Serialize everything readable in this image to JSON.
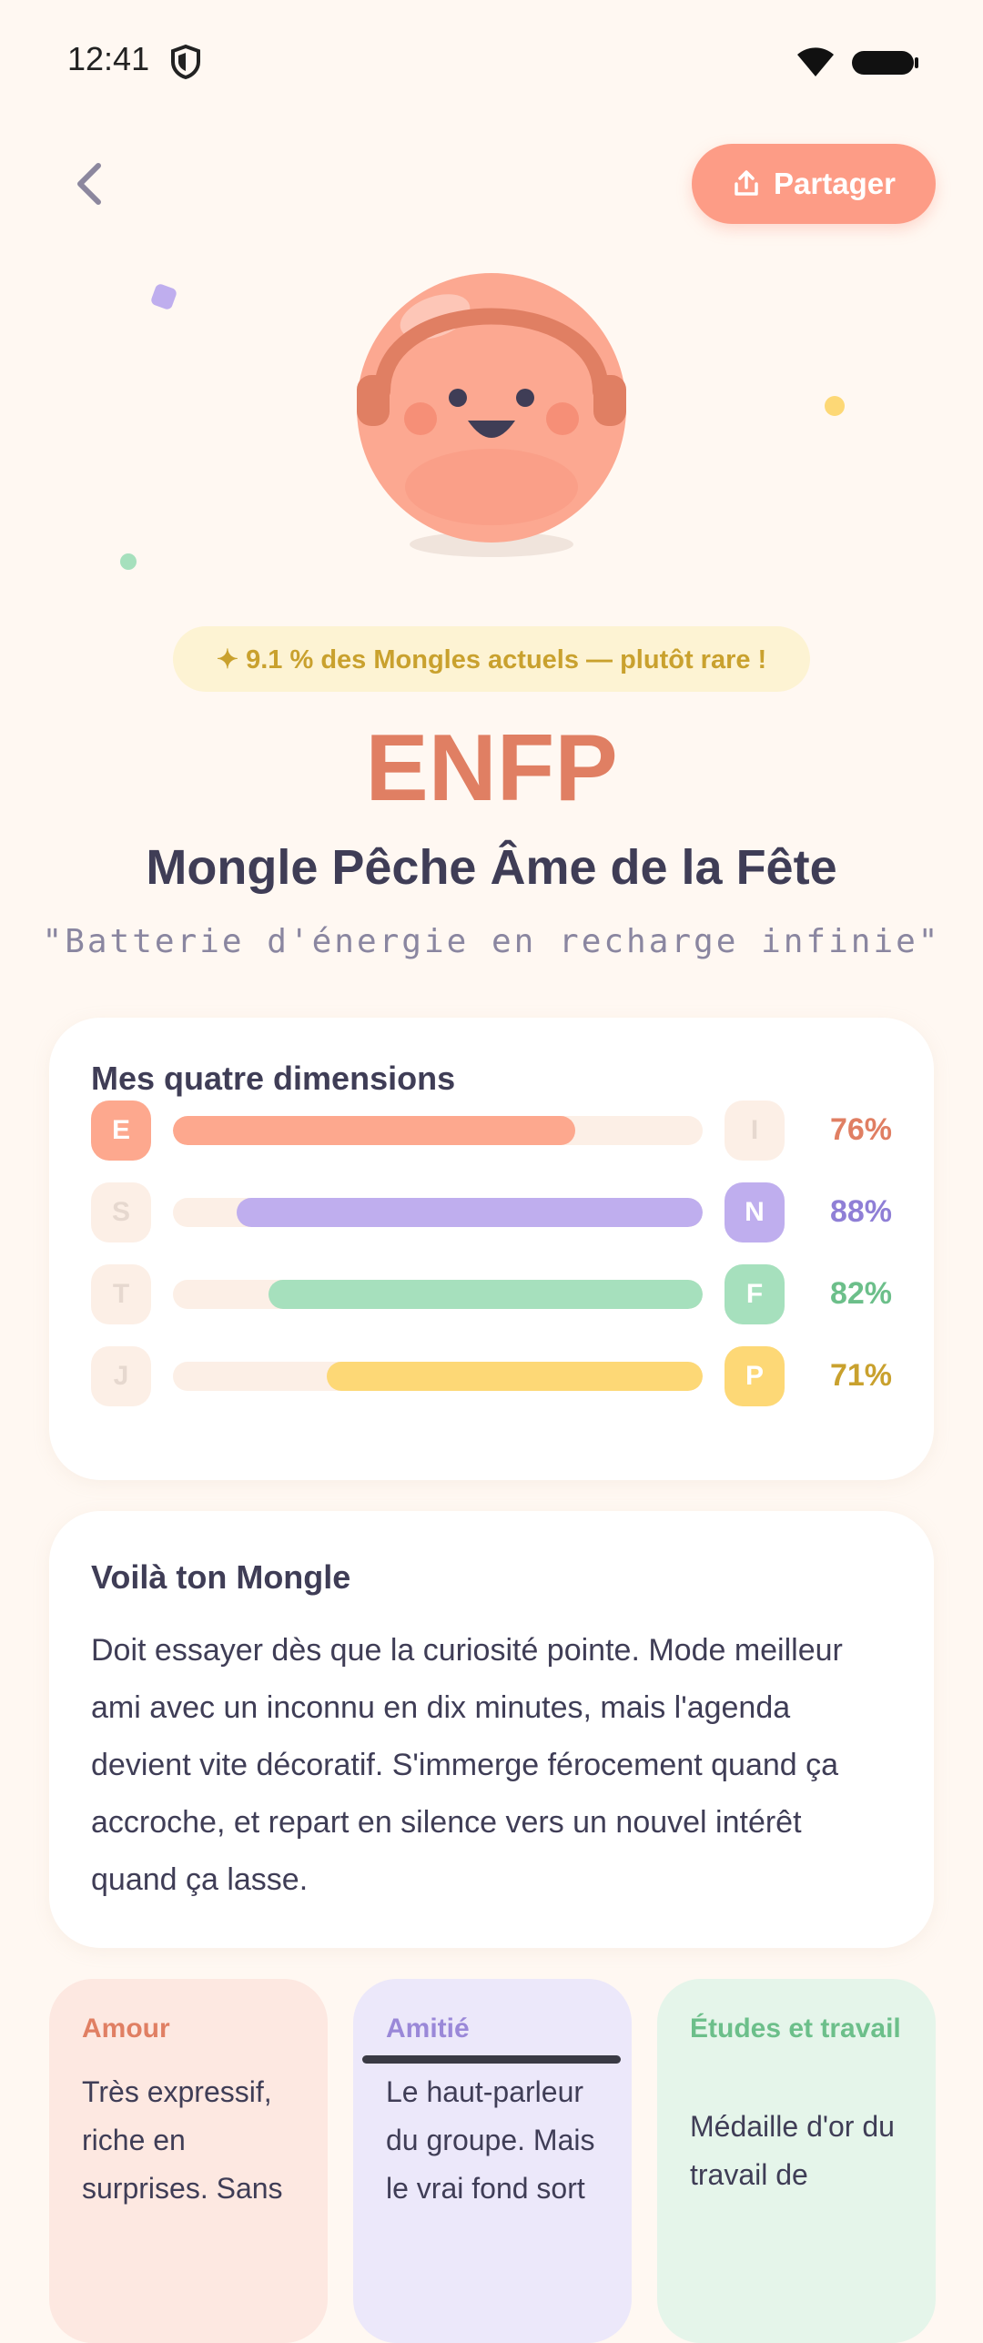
{
  "status_bar": {
    "time": "12:41"
  },
  "header": {
    "share": "Partager"
  },
  "rarity": "✦ 9.1 % des Mongles actuels — plutôt rare !",
  "type": "ENFP",
  "name": "Mongle Pêche Âme de la Fête",
  "tagline": "\"Batterie d'énergie en recharge infinie\"",
  "dimensions": {
    "title": "Mes quatre dimensions",
    "rows": [
      {
        "left": "E",
        "right": "I",
        "dominant": "left",
        "percent": {
          "value": 76,
          "label": "76%"
        },
        "color": "#fda88e",
        "text_color": "#e07f63"
      },
      {
        "left": "S",
        "right": "N",
        "dominant": "right",
        "percent": {
          "value": 88,
          "label": "88%"
        },
        "color": "#bfaeee",
        "text_color": "#8f7fd6"
      },
      {
        "left": "T",
        "right": "F",
        "dominant": "right",
        "percent": {
          "value": 82,
          "label": "82%"
        },
        "color": "#a6e0bd",
        "text_color": "#6cbf8a"
      },
      {
        "left": "J",
        "right": "P",
        "dominant": "right",
        "percent": {
          "value": 71,
          "label": "71%"
        },
        "color": "#fdd876",
        "text_color": "#c9a12e"
      }
    ]
  },
  "description": {
    "title": "Voilà ton Mongle",
    "text": "Doit essayer dès que la curiosité pointe. Mode meilleur ami avec un inconnu en dix minutes, mais l'agenda devient vite décoratif. S'immerge férocement quand ça accroche, et repart en silence vers un nouvel intérêt quand ça lasse."
  },
  "cards": [
    {
      "title": "Amour",
      "text": "Très expressif, riche en surprises. Sans",
      "color": "#fde8e1",
      "title_color": "#e07f63"
    },
    {
      "title": "Amitié",
      "text": "Le haut-parleur du groupe. Mais le vrai fond sort",
      "color": "#ece8fa",
      "title_color": "#9a88d8"
    },
    {
      "title": "Études et travail",
      "text": "Médaille d'or du travail de",
      "color": "#e5f5ea",
      "title_color": "#6cbf8a"
    }
  ]
}
